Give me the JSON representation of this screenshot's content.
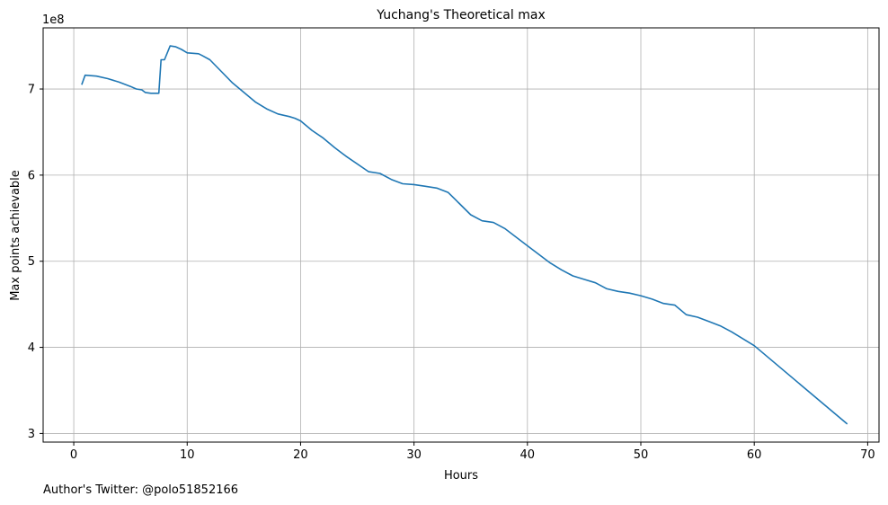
{
  "footer_text": "Author's Twitter: @polo51852166",
  "chart_data": {
    "type": "line",
    "title": "Yuchang's Theoretical max",
    "xlabel": "Hours",
    "ylabel": "Max points achievable",
    "y_offset_label": "1e8",
    "xlim": [
      -2.7,
      71.0
    ],
    "ylim": [
      2.9,
      7.71
    ],
    "xticks": [
      0,
      10,
      20,
      30,
      40,
      50,
      60,
      70
    ],
    "yticks": [
      3,
      4,
      5,
      6,
      7
    ],
    "grid": true,
    "line_color": "#1f77b4",
    "series": [
      {
        "x": [
          0.7,
          1.0,
          2.0,
          3.0,
          4.0,
          5.0,
          5.5,
          6.0,
          6.3,
          6.8,
          7.5,
          7.7,
          8.0,
          8.5,
          9.0,
          9.5,
          10.0,
          11.0,
          11.3,
          12.0,
          14.0,
          16.0,
          17.0,
          18.0,
          19.0,
          19.5,
          20.0,
          21.0,
          22.0,
          23.0,
          24.0,
          26.0,
          27.0,
          28.0,
          29.0,
          30.0,
          31.0,
          32.0,
          33.0,
          34.0,
          35.0,
          36.0,
          37.0,
          38.0,
          40.0,
          42.0,
          43.0,
          44.0,
          45.0,
          46.0,
          47.0,
          48.0,
          49.0,
          50.0,
          51.0,
          52.0,
          53.0,
          54.0,
          55.0,
          56.0,
          57.0,
          58.0,
          60.0,
          68.2
        ],
        "values": [
          7.05,
          7.16,
          7.15,
          7.12,
          7.08,
          7.03,
          7.0,
          6.99,
          6.96,
          6.95,
          6.95,
          7.34,
          7.34,
          7.5,
          7.49,
          7.46,
          7.42,
          7.41,
          7.39,
          7.34,
          7.07,
          6.85,
          6.77,
          6.71,
          6.68,
          6.66,
          6.63,
          6.52,
          6.43,
          6.32,
          6.22,
          6.04,
          6.02,
          5.95,
          5.9,
          5.89,
          5.87,
          5.85,
          5.8,
          5.67,
          5.54,
          5.47,
          5.45,
          5.38,
          5.18,
          4.98,
          4.9,
          4.83,
          4.79,
          4.75,
          4.68,
          4.65,
          4.63,
          4.6,
          4.56,
          4.51,
          4.49,
          4.38,
          4.35,
          4.3,
          4.25,
          4.18,
          4.02,
          3.11
        ]
      }
    ]
  }
}
